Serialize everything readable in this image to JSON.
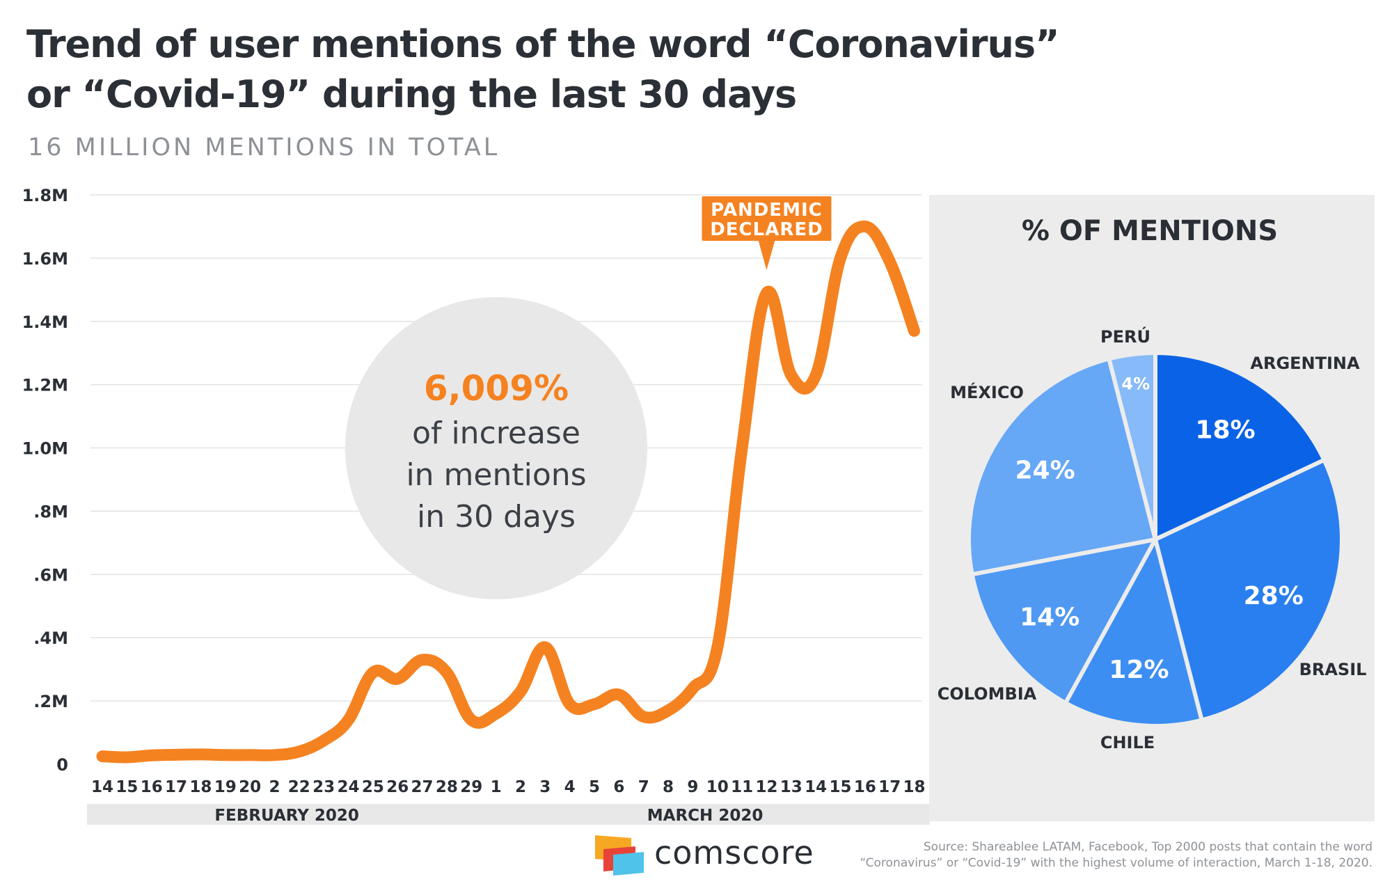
{
  "header": {
    "title_line1": "Trend of user mentions of the word “Coronavirus”",
    "title_line2": "or “Covid-19” during the last 30 days",
    "subtitle": "16 MILLION MENTIONS IN TOTAL"
  },
  "colors": {
    "line": "#f58220",
    "argentina": "#0a63e6",
    "brasil": "#2a7ff0",
    "chile": "#3d8ef2",
    "colombia": "#4f99f3",
    "mexico": "#66a7f6",
    "peru": "#86baf8",
    "panel": "#ececec"
  },
  "callout": {
    "value": "6,009%",
    "line1": "of increase",
    "line2": "in mentions",
    "line3": "in 30 days"
  },
  "annotation": {
    "line1": "PANDEMIC",
    "line2": "DECLARED"
  },
  "chart_data": [
    {
      "type": "line",
      "title": "",
      "xlabel": "",
      "ylabel": "",
      "ylim": [
        0,
        1800000
      ],
      "yticks": [
        0,
        200000,
        400000,
        600000,
        800000,
        1000000,
        1200000,
        1400000,
        1600000,
        1800000
      ],
      "ytick_labels": [
        "0",
        ".2M",
        ".4M",
        ".6M",
        ".8M",
        "1.0M",
        "1.2M",
        "1.4M",
        "1.6M",
        "1.8M"
      ],
      "categories": [
        "14",
        "15",
        "16",
        "17",
        "18",
        "19",
        "20",
        "2",
        "22",
        "23",
        "24",
        "25",
        "26",
        "27",
        "28",
        "29",
        "1",
        "2",
        "3",
        "4",
        "5",
        "6",
        "7",
        "8",
        "9",
        "10",
        "11",
        "12",
        "13",
        "14",
        "15",
        "16",
        "17",
        "18"
      ],
      "month_groups": [
        {
          "label": "FEBRUARY 2020",
          "count": 16
        },
        {
          "label": "MARCH 2020",
          "count": 18
        }
      ],
      "series": [
        {
          "values": [
            25000,
            22000,
            28000,
            30000,
            31000,
            29000,
            29000,
            29000,
            40000,
            75000,
            140000,
            290000,
            270000,
            330000,
            290000,
            140000,
            160000,
            230000,
            370000,
            190000,
            190000,
            220000,
            150000,
            170000,
            240000,
            370000,
            1000000,
            1490000,
            1230000,
            1230000,
            1600000,
            1700000,
            1590000,
            1370000
          ]
        }
      ],
      "grid": true,
      "annotation_index": 27
    },
    {
      "type": "pie",
      "title": "% OF MENTIONS",
      "labels": [
        "ARGENTINA",
        "BRASIL",
        "CHILE",
        "COLOMBIA",
        "MÉXICO",
        "PERÚ"
      ],
      "values": [
        18,
        28,
        12,
        14,
        24,
        4
      ],
      "value_labels": [
        "18%",
        "28%",
        "12%",
        "14%",
        "24%",
        "4%"
      ]
    }
  ],
  "footer": {
    "brand": "comscore",
    "source_line1": "Source: Shareablee LATAM, Facebook, Top 2000 posts that contain the word",
    "source_line2": "“Coronavirus” or “Covid-19” with the highest volume of interaction, March 1-18, 2020."
  }
}
